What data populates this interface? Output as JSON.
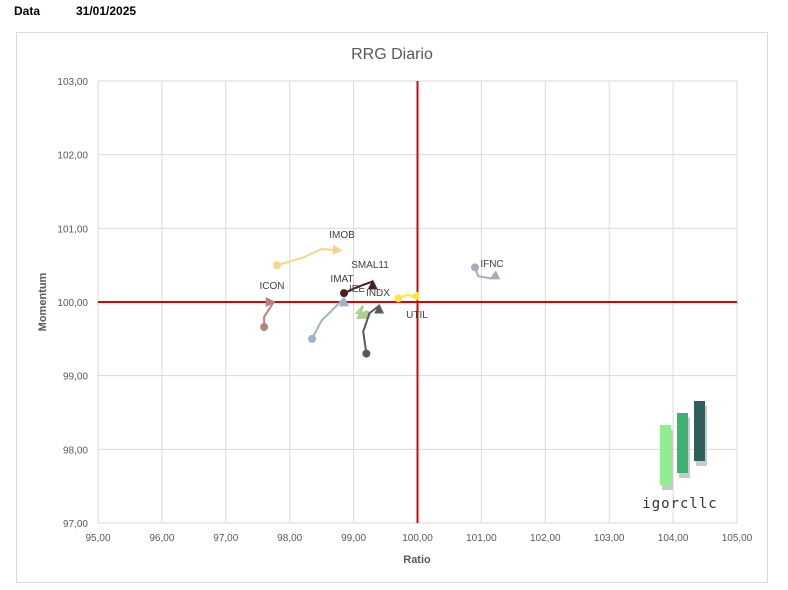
{
  "header": {
    "label": "Data",
    "date": "31/01/2025"
  },
  "logo": {
    "text": "igorcllc",
    "colors": [
      "#90ee90",
      "#3cb371",
      "#2f5f5a"
    ]
  },
  "colors": {
    "grid": "#d9d9d9",
    "quadrant_line": "#e00000",
    "frame": "#d9d9d9"
  },
  "chart_data": {
    "type": "scatter",
    "title": "RRG Diario",
    "xlabel": "Ratio",
    "ylabel": "Momentum",
    "xlim": [
      95,
      105
    ],
    "ylim": [
      97,
      103
    ],
    "xticks": [
      "95,00",
      "96,00",
      "97,00",
      "98,00",
      "99,00",
      "100,00",
      "101,00",
      "102,00",
      "103,00",
      "104,00",
      "105,00"
    ],
    "yticks": [
      "97,00",
      "98,00",
      "99,00",
      "100,00",
      "101,00",
      "102,00",
      "103,00"
    ],
    "grid": true,
    "reference_lines": {
      "x": 100,
      "y": 100
    },
    "series": [
      {
        "name": "IMOB",
        "color": "#f7d48a",
        "points": [
          [
            97.8,
            100.5
          ],
          [
            98.2,
            100.6
          ],
          [
            98.5,
            100.72
          ],
          [
            98.8,
            100.7
          ]
        ]
      },
      {
        "name": "SMAL11",
        "color": "#4a1f1f",
        "points": [
          [
            98.85,
            100.12
          ],
          [
            99.05,
            100.2
          ],
          [
            99.3,
            100.28
          ]
        ]
      },
      {
        "name": "IMAT",
        "color": "#9fb3c8",
        "points": [
          [
            98.35,
            99.5
          ],
          [
            98.5,
            99.75
          ],
          [
            98.7,
            99.92
          ],
          [
            98.85,
            100.05
          ]
        ]
      },
      {
        "name": "ICON",
        "color": "#b5817b",
        "points": [
          [
            97.6,
            99.66
          ],
          [
            97.6,
            99.8
          ],
          [
            97.75,
            100.0
          ]
        ]
      },
      {
        "name": "IEE",
        "color": "#a9d18e",
        "points": [
          [
            99.2,
            99.83
          ],
          [
            99.05,
            99.85
          ],
          [
            99.15,
            99.95
          ],
          [
            99.12,
            99.88
          ]
        ]
      },
      {
        "name": "INDX",
        "color": "#595959",
        "points": [
          [
            99.2,
            99.3
          ],
          [
            99.15,
            99.6
          ],
          [
            99.25,
            99.85
          ],
          [
            99.4,
            99.95
          ]
        ]
      },
      {
        "name": "UTIL",
        "color": "#ffe640",
        "points": [
          [
            99.7,
            100.05
          ],
          [
            99.85,
            100.1
          ],
          [
            99.9,
            100.08
          ]
        ]
      },
      {
        "name": "IFNC",
        "color": "#aaaab8",
        "points": [
          [
            100.9,
            100.47
          ],
          [
            100.95,
            100.35
          ],
          [
            101.15,
            100.32
          ]
        ]
      }
    ]
  }
}
